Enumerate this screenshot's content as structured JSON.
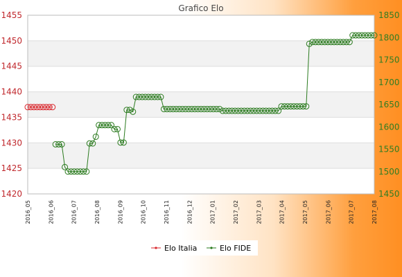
{
  "chart_data": {
    "type": "line",
    "title": "Grafico Elo",
    "xlabel": "",
    "ylabel": "",
    "y_left": {
      "min": 1420,
      "max": 1455,
      "ticks": [
        1420,
        1425,
        1430,
        1435,
        1440,
        1445,
        1450,
        1455
      ]
    },
    "y_right": {
      "min": 1450,
      "max": 1850,
      "ticks": [
        1450,
        1500,
        1550,
        1600,
        1650,
        1700,
        1750,
        1800,
        1850
      ]
    },
    "x_labels": [
      "2016_05",
      "2016_06",
      "2016_07",
      "2016_08",
      "2016_09",
      "2016_10",
      "2016_11",
      "2016_12",
      "2017_01",
      "2017_02",
      "2017_03",
      "2017_04",
      "2017_05",
      "2017_06",
      "2017_07",
      "2017_08"
    ],
    "grid": true,
    "legend_position": "bottom",
    "series": [
      {
        "name": "Elo Italia",
        "axis": "left",
        "color": "#d9262c",
        "values": [
          1437,
          1437,
          1437,
          1437,
          1437,
          1437,
          1437,
          1437,
          1437
        ]
      },
      {
        "name": "Elo FIDE",
        "axis": "right",
        "color": "#2a7a1e",
        "start_index": 9,
        "values": [
          1561,
          1561,
          1561,
          1510,
          1500,
          1500,
          1500,
          1500,
          1500,
          1500,
          1500,
          1563,
          1563,
          1578,
          1604,
          1604,
          1604,
          1604,
          1604,
          1595,
          1595,
          1565,
          1565,
          1638,
          1638,
          1634,
          1667,
          1667,
          1667,
          1667,
          1667,
          1667,
          1667,
          1667,
          1667,
          1640,
          1640,
          1640,
          1640,
          1640,
          1640,
          1640,
          1640,
          1640,
          1640,
          1640,
          1640,
          1640,
          1640,
          1640,
          1640,
          1640,
          1640,
          1640,
          1636,
          1636,
          1636,
          1636,
          1636,
          1636,
          1636,
          1636,
          1636,
          1636,
          1636,
          1636,
          1636,
          1636,
          1636,
          1636,
          1636,
          1636,
          1636,
          1646,
          1646,
          1646,
          1646,
          1646,
          1646,
          1646,
          1646,
          1646,
          1786,
          1790,
          1790,
          1790,
          1790,
          1790,
          1790,
          1790,
          1790,
          1790,
          1790,
          1790,
          1790,
          1790,
          1805,
          1805,
          1805,
          1805,
          1805,
          1805,
          1805,
          1805
        ]
      }
    ]
  }
}
